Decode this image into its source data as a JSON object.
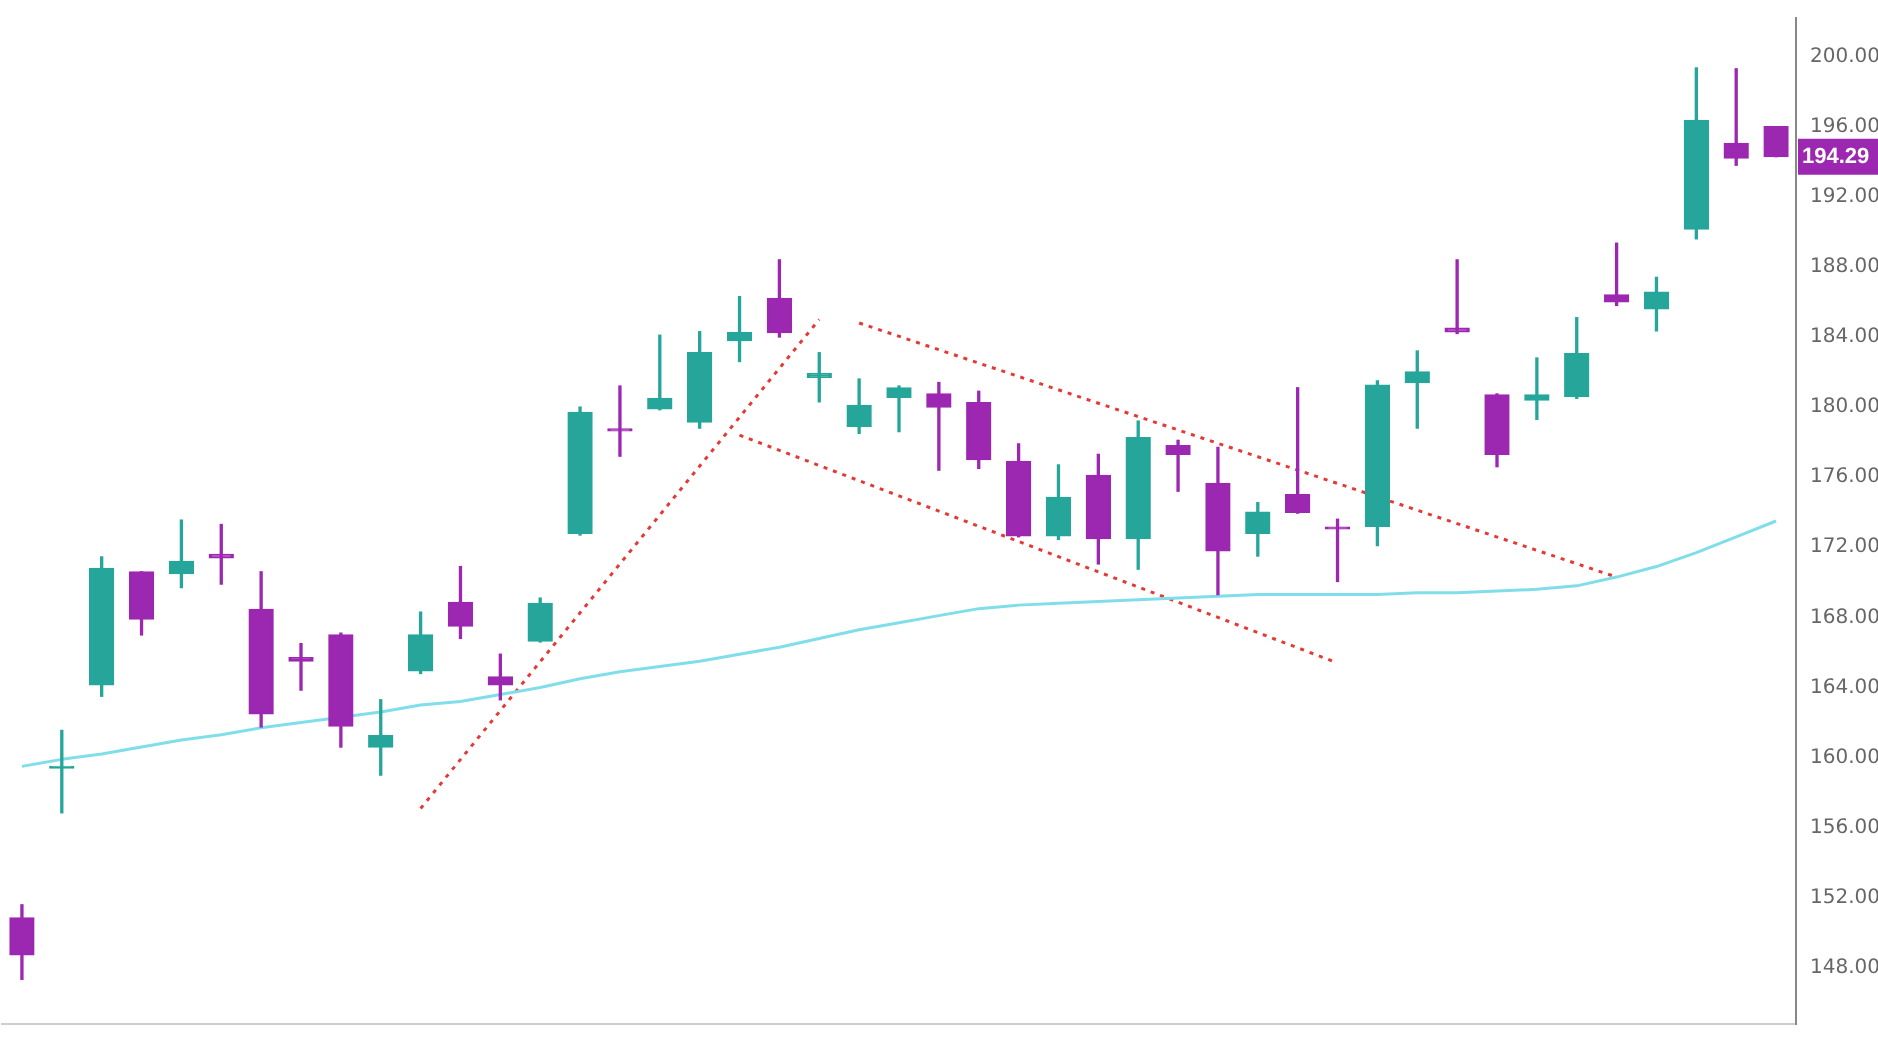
{
  "chart_data": {
    "type": "candlestick",
    "categories": [
      null,
      null,
      null,
      null,
      null,
      null,
      null,
      null,
      null,
      null,
      null,
      null,
      null,
      null,
      null,
      null,
      null,
      null,
      null,
      null,
      null,
      null,
      null,
      null,
      null,
      null,
      null,
      null,
      null,
      null,
      null,
      null,
      null,
      null,
      null,
      null,
      null,
      null,
      null,
      null,
      null,
      null,
      null,
      null,
      null
    ],
    "ohlc": [
      [
        150.85,
        151.6,
        147.35,
        148.75
      ],
      [
        159.4,
        161.55,
        156.85,
        159.5
      ],
      [
        164.15,
        171.45,
        163.5,
        170.8
      ],
      [
        170.6,
        170.6,
        167.0,
        167.9
      ],
      [
        170.5,
        173.55,
        169.7,
        171.2
      ],
      [
        171.6,
        173.3,
        169.9,
        171.4
      ],
      [
        168.45,
        170.6,
        161.75,
        162.5
      ],
      [
        165.7,
        166.5,
        163.85,
        165.5
      ],
      [
        167.0,
        167.1,
        160.6,
        161.8
      ],
      [
        160.6,
        163.3,
        159.0,
        161.25
      ],
      [
        164.95,
        168.3,
        164.8,
        167.0
      ],
      [
        168.85,
        170.9,
        166.8,
        167.5
      ],
      [
        164.6,
        165.9,
        163.3,
        164.15
      ],
      [
        166.65,
        169.1,
        166.6,
        168.8
      ],
      [
        172.8,
        180.0,
        172.7,
        179.7
      ],
      [
        178.75,
        181.2,
        177.2,
        178.65
      ],
      [
        179.9,
        184.1,
        179.85,
        180.5
      ],
      [
        179.15,
        184.3,
        178.8,
        183.1
      ],
      [
        183.8,
        186.3,
        182.6,
        184.25
      ],
      [
        186.2,
        188.4,
        184.0,
        184.25
      ],
      [
        181.7,
        183.1,
        180.3,
        181.9
      ],
      [
        178.9,
        181.6,
        178.5,
        180.1
      ],
      [
        180.55,
        181.2,
        178.6,
        181.1
      ],
      [
        180.75,
        181.4,
        176.4,
        180.0
      ],
      [
        180.25,
        180.9,
        176.5,
        177.0
      ],
      [
        176.9,
        177.9,
        172.6,
        172.65
      ],
      [
        172.65,
        176.7,
        172.45,
        174.85
      ],
      [
        176.1,
        177.3,
        171.05,
        172.5
      ],
      [
        172.5,
        179.2,
        170.75,
        178.25
      ],
      [
        177.8,
        178.1,
        175.2,
        177.3
      ],
      [
        175.65,
        177.7,
        169.3,
        171.8
      ],
      [
        172.8,
        174.55,
        171.5,
        174.0
      ],
      [
        175.0,
        181.1,
        173.95,
        174.0
      ],
      [
        173.15,
        173.6,
        170.05,
        173.05
      ],
      [
        173.2,
        181.5,
        172.1,
        181.25
      ],
      [
        181.4,
        183.2,
        178.8,
        182.0
      ],
      [
        184.5,
        188.4,
        184.2,
        184.3
      ],
      [
        180.7,
        180.75,
        176.6,
        177.3
      ],
      [
        180.4,
        182.8,
        179.3,
        180.7
      ],
      [
        180.6,
        185.1,
        180.5,
        183.05
      ],
      [
        186.4,
        189.35,
        185.8,
        186.0
      ],
      [
        185.6,
        187.4,
        184.35,
        186.55
      ],
      [
        190.15,
        199.35,
        189.6,
        196.35
      ],
      [
        195.05,
        199.3,
        193.8,
        194.2
      ],
      [
        196.0,
        196.0,
        194.29,
        194.29
      ]
    ],
    "colors": [
      "#9c27b0",
      "#26a69a",
      "#26a69a",
      "#9c27b0",
      "#26a69a",
      "#9c27b0",
      "#9c27b0",
      "#9c27b0",
      "#9c27b0",
      "#26a69a",
      "#26a69a",
      "#9c27b0",
      "#9c27b0",
      "#26a69a",
      "#26a69a",
      "#9c27b0",
      "#26a69a",
      "#26a69a",
      "#26a69a",
      "#9c27b0",
      "#26a69a",
      "#26a69a",
      "#26a69a",
      "#9c27b0",
      "#9c27b0",
      "#9c27b0",
      "#26a69a",
      "#9c27b0",
      "#26a69a",
      "#9c27b0",
      "#9c27b0",
      "#26a69a",
      "#9c27b0",
      "#9c27b0",
      "#26a69a",
      "#26a69a",
      "#9c27b0",
      "#9c27b0",
      "#26a69a",
      "#26a69a",
      "#9c27b0",
      "#26a69a",
      "#26a69a",
      "#9c27b0",
      "#9c27b0"
    ],
    "series": [
      {
        "type": "line",
        "color": "#80deea",
        "values": [
          159.5,
          159.9,
          160.2,
          160.6,
          161.0,
          161.3,
          161.7,
          162.0,
          null,
          162.6,
          163.0,
          163.2,
          163.6,
          164.0,
          164.5,
          164.9,
          165.2,
          165.5,
          165.9,
          166.3,
          166.8,
          167.3,
          167.7,
          168.1,
          168.5,
          168.7,
          168.8,
          168.9,
          169.0,
          169.1,
          169.2,
          169.3,
          169.3,
          169.3,
          169.3,
          169.4,
          169.4,
          169.5,
          169.6,
          169.8,
          170.3,
          170.9,
          171.7,
          172.6,
          173.5
        ]
      },
      {
        "type": "line",
        "color": "#e53935",
        "line_style": "dotted",
        "values": [
          null,
          null,
          null,
          null,
          null,
          null,
          null,
          null,
          null,
          null,
          157.1,
          null,
          null,
          null,
          null,
          null,
          null,
          null,
          null,
          null,
          185.0,
          null,
          null,
          null,
          null,
          null,
          null,
          null,
          null,
          null,
          null,
          null,
          null,
          null,
          null,
          null,
          null,
          null,
          null,
          null,
          null,
          null,
          null,
          null,
          null
        ]
      },
      {
        "type": "line",
        "color": "#e53935",
        "line_style": "dotted",
        "values": [
          null,
          null,
          null,
          null,
          null,
          null,
          null,
          null,
          null,
          null,
          null,
          null,
          null,
          null,
          null,
          null,
          null,
          null,
          null,
          null,
          null,
          184.8,
          null,
          null,
          null,
          null,
          null,
          null,
          null,
          null,
          null,
          null,
          null,
          null,
          null,
          null,
          null,
          null,
          null,
          null,
          170.3,
          null,
          null,
          null,
          null
        ]
      },
      {
        "type": "line",
        "color": "#e53935",
        "line_style": "dotted",
        "values": [
          null,
          null,
          null,
          null,
          null,
          null,
          null,
          null,
          null,
          null,
          null,
          null,
          null,
          null,
          null,
          null,
          null,
          null,
          178.4,
          null,
          null,
          null,
          null,
          null,
          null,
          null,
          null,
          null,
          null,
          null,
          null,
          null,
          null,
          165.4,
          null,
          null,
          null,
          null,
          null,
          null,
          null,
          null,
          null,
          null,
          null
        ]
      }
    ],
    "ylim": [
      144.8,
      202.2
    ],
    "yticks": [
      {
        "value": 148,
        "label": "148.00"
      },
      {
        "value": 152,
        "label": "152.00"
      },
      {
        "value": 156,
        "label": "156.00"
      },
      {
        "value": 160,
        "label": "160.00"
      },
      {
        "value": 164,
        "label": "164.00"
      },
      {
        "value": 168,
        "label": "168.00"
      },
      {
        "value": 172,
        "label": "172.00"
      },
      {
        "value": 176,
        "label": "176.00"
      },
      {
        "value": 180,
        "label": "180.00"
      },
      {
        "value": 184,
        "label": "184.00"
      },
      {
        "value": 188,
        "label": "188.00"
      },
      {
        "value": 192,
        "label": "192.00"
      },
      {
        "value": 196,
        "label": "196.00"
      },
      {
        "value": 200,
        "label": "200.00"
      }
    ],
    "tick_labels": "y",
    "grid": false,
    "legend": false,
    "annotations": [
      "194.29"
    ]
  }
}
